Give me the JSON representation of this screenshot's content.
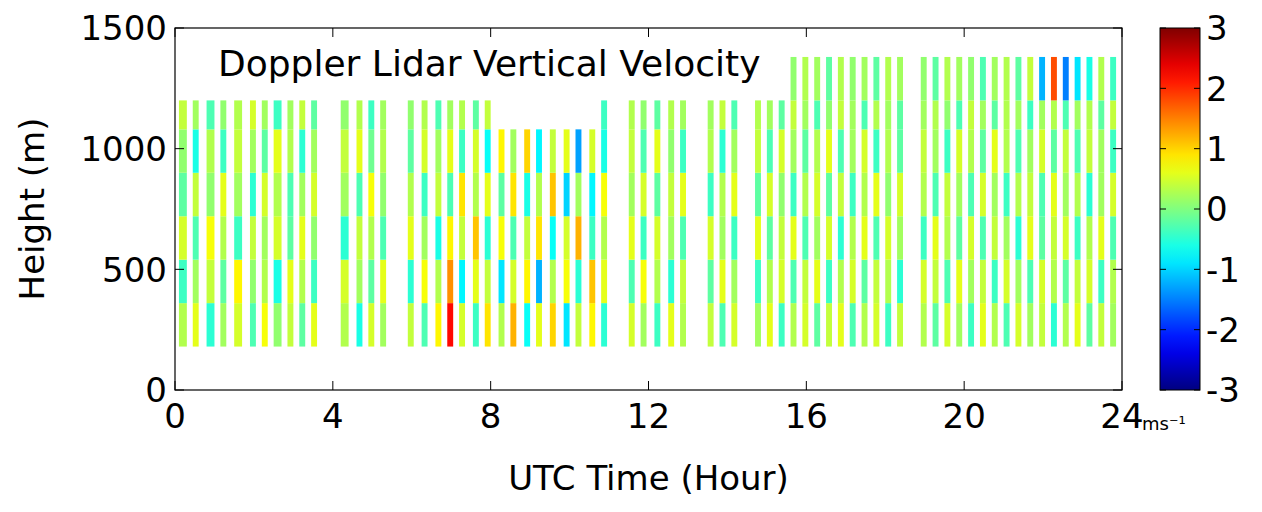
{
  "chart_data": {
    "type": "heatmap",
    "title": "Doppler Lidar Vertical Velocity",
    "x_label": "UTC Time (Hour)",
    "y_label": "Height (m)",
    "xlim": [
      0,
      24
    ],
    "xticks": [
      0,
      4,
      8,
      12,
      16,
      20,
      24
    ],
    "ylim": [
      0,
      1500
    ],
    "yticks": [
      0,
      500,
      1000,
      1500
    ],
    "height_edges": [
      180,
      360,
      540,
      720,
      900,
      1080,
      1200,
      1380
    ],
    "columns": [
      {
        "start": 0.1,
        "end": 0.3,
        "values": [
          0.3,
          -0.4,
          0.5,
          -0.2,
          0.1,
          0.4,
          null
        ]
      },
      {
        "start": 0.45,
        "end": 0.6,
        "values": [
          0.6,
          0.2,
          -0.3,
          0.4,
          -0.6,
          0.2,
          null
        ]
      },
      {
        "start": 0.8,
        "end": 1.0,
        "values": [
          -0.5,
          0.4,
          0.7,
          0.1,
          0.3,
          -0.3,
          null
        ]
      },
      {
        "start": 1.15,
        "end": 1.3,
        "values": [
          0.2,
          -0.2,
          0.3,
          0.6,
          -0.4,
          0.1,
          null
        ]
      },
      {
        "start": 1.5,
        "end": 1.7,
        "values": [
          0.5,
          0.8,
          -0.4,
          0.2,
          0.4,
          0.3,
          null
        ]
      },
      {
        "start": 1.9,
        "end": 2.05,
        "values": [
          -0.3,
          0.1,
          0.4,
          -0.5,
          0.2,
          0.5,
          null
        ]
      },
      {
        "start": 2.2,
        "end": 2.35,
        "values": [
          0.7,
          0.3,
          0.2,
          0.5,
          -0.2,
          0.2,
          null
        ]
      },
      {
        "start": 2.5,
        "end": 2.7,
        "values": [
          0.1,
          -0.6,
          0.5,
          0.3,
          0.6,
          -0.4,
          null
        ]
      },
      {
        "start": 2.85,
        "end": 3.0,
        "values": [
          0.4,
          0.6,
          -0.2,
          -0.3,
          0.3,
          0.2,
          null
        ]
      },
      {
        "start": 3.15,
        "end": 3.3,
        "values": [
          -0.2,
          0.3,
          0.6,
          0.2,
          -0.5,
          0.4,
          null
        ]
      },
      {
        "start": 3.45,
        "end": 3.6,
        "values": [
          0.6,
          -0.4,
          0.1,
          0.5,
          0.2,
          -0.2,
          null
        ]
      },
      {
        "start": 4.2,
        "end": 4.4,
        "values": [
          0.3,
          0.5,
          -0.5,
          0.2,
          0.4,
          0.1,
          null
        ]
      },
      {
        "start": 4.6,
        "end": 4.75,
        "values": [
          -0.6,
          0.2,
          0.4,
          -0.3,
          0.6,
          0.3,
          null
        ]
      },
      {
        "start": 4.9,
        "end": 5.05,
        "values": [
          0.5,
          -0.2,
          0.3,
          0.7,
          -0.1,
          -0.4,
          null
        ]
      },
      {
        "start": 5.2,
        "end": 5.35,
        "values": [
          0.2,
          0.6,
          -0.3,
          0.1,
          0.3,
          0.2,
          null
        ]
      },
      {
        "start": 5.9,
        "end": 6.05,
        "values": [
          0.4,
          -0.5,
          0.6,
          0.3,
          -0.2,
          0.1,
          null
        ]
      },
      {
        "start": 6.25,
        "end": 6.4,
        "values": [
          -0.3,
          0.7,
          0.2,
          -0.4,
          0.5,
          0.3,
          null
        ]
      },
      {
        "start": 6.6,
        "end": 6.75,
        "values": [
          0.8,
          0.3,
          -0.6,
          0.4,
          0.2,
          -0.3,
          null
        ]
      },
      {
        "start": 6.9,
        "end": 7.05,
        "values": [
          2.2,
          1.4,
          0.8,
          -0.3,
          0.6,
          0.2,
          null
        ]
      },
      {
        "start": 7.2,
        "end": 7.35,
        "values": [
          0.5,
          -0.8,
          0.4,
          0.9,
          -0.4,
          0.3,
          null
        ]
      },
      {
        "start": 7.55,
        "end": 7.7,
        "values": [
          -0.4,
          0.6,
          1.1,
          0.3,
          0.5,
          -0.2,
          null
        ]
      },
      {
        "start": 7.85,
        "end": 8.0,
        "values": [
          0.9,
          0.4,
          -0.5,
          0.6,
          -0.7,
          0.4,
          null
        ]
      },
      {
        "start": 8.2,
        "end": 8.35,
        "values": [
          0.3,
          -0.9,
          0.7,
          -0.2,
          0.8,
          null,
          null
        ]
      },
      {
        "start": 8.5,
        "end": 8.65,
        "values": [
          1.2,
          0.5,
          -0.3,
          0.9,
          0.2,
          null,
          null
        ]
      },
      {
        "start": 8.85,
        "end": 9.0,
        "values": [
          -0.7,
          0.8,
          0.4,
          -0.6,
          1.0,
          null,
          null
        ]
      },
      {
        "start": 9.15,
        "end": 9.3,
        "values": [
          0.6,
          -1.2,
          0.9,
          0.3,
          -0.8,
          null,
          null
        ]
      },
      {
        "start": 9.5,
        "end": 9.65,
        "values": [
          1.0,
          0.3,
          -0.7,
          1.1,
          0.4,
          null,
          null
        ]
      },
      {
        "start": 9.85,
        "end": 10.0,
        "values": [
          -0.9,
          0.7,
          0.5,
          -1.0,
          0.6,
          null,
          null
        ]
      },
      {
        "start": 10.15,
        "end": 10.3,
        "values": [
          0.4,
          -0.5,
          1.2,
          0.2,
          -1.3,
          null,
          null
        ]
      },
      {
        "start": 10.5,
        "end": 10.65,
        "values": [
          0.8,
          1.1,
          -0.4,
          -0.8,
          0.5,
          null,
          null
        ]
      },
      {
        "start": 10.8,
        "end": 10.95,
        "values": [
          -0.5,
          0.6,
          0.3,
          0.7,
          -0.6,
          -0.4,
          null
        ]
      },
      {
        "start": 11.5,
        "end": 11.65,
        "values": [
          0.5,
          -0.3,
          0.6,
          0.2,
          0.4,
          0.3,
          null
        ]
      },
      {
        "start": 11.8,
        "end": 11.95,
        "values": [
          0.2,
          0.7,
          -0.4,
          0.5,
          -0.3,
          0.1,
          null
        ]
      },
      {
        "start": 12.15,
        "end": 12.3,
        "values": [
          -0.4,
          0.3,
          0.5,
          -0.2,
          0.6,
          -0.2,
          null
        ]
      },
      {
        "start": 12.5,
        "end": 12.65,
        "values": [
          0.6,
          -0.5,
          0.2,
          0.4,
          0.1,
          0.3,
          null
        ]
      },
      {
        "start": 12.8,
        "end": 12.95,
        "values": [
          0.3,
          0.4,
          -0.3,
          0.6,
          -0.4,
          0.2,
          null
        ]
      },
      {
        "start": 13.5,
        "end": 13.65,
        "values": [
          0.4,
          -0.2,
          0.5,
          -0.4,
          0.3,
          0.2,
          null
        ]
      },
      {
        "start": 13.8,
        "end": 13.95,
        "values": [
          -0.3,
          0.6,
          0.2,
          0.3,
          -0.5,
          0.4,
          null
        ]
      },
      {
        "start": 14.1,
        "end": 14.25,
        "values": [
          0.5,
          0.2,
          -0.4,
          0.6,
          0.2,
          -0.3,
          null
        ]
      },
      {
        "start": 14.7,
        "end": 14.85,
        "values": [
          0.2,
          -0.4,
          0.6,
          -0.2,
          0.4,
          0.3,
          null
        ]
      },
      {
        "start": 15.0,
        "end": 15.15,
        "values": [
          0.6,
          0.3,
          -0.2,
          0.5,
          -0.3,
          0.2,
          null
        ]
      },
      {
        "start": 15.3,
        "end": 15.45,
        "values": [
          -0.4,
          0.5,
          0.4,
          0.1,
          0.5,
          -0.2,
          null
        ]
      },
      {
        "start": 15.6,
        "end": 15.75,
        "values": [
          0.3,
          -0.3,
          0.6,
          -0.4,
          0.2,
          0.4,
          0.1
        ]
      },
      {
        "start": 15.9,
        "end": 16.05,
        "values": [
          0.5,
          0.4,
          -0.3,
          0.3,
          -0.2,
          0.2,
          0.3
        ]
      },
      {
        "start": 16.2,
        "end": 16.35,
        "values": [
          -0.2,
          0.6,
          0.2,
          0.5,
          0.3,
          -0.3,
          0.2
        ]
      },
      {
        "start": 16.5,
        "end": 16.65,
        "values": [
          0.4,
          -0.4,
          0.5,
          -0.2,
          0.6,
          0.1,
          -0.2
        ]
      },
      {
        "start": 16.8,
        "end": 16.95,
        "values": [
          0.6,
          0.3,
          -0.5,
          0.4,
          -0.3,
          0.4,
          0.3
        ]
      },
      {
        "start": 17.1,
        "end": 17.25,
        "values": [
          -0.3,
          0.5,
          0.3,
          -0.4,
          0.2,
          0.2,
          0.1
        ]
      },
      {
        "start": 17.4,
        "end": 17.55,
        "values": [
          0.3,
          -0.2,
          0.6,
          0.3,
          0.5,
          -0.3,
          0.2
        ]
      },
      {
        "start": 17.7,
        "end": 17.85,
        "values": [
          0.5,
          0.4,
          -0.3,
          0.6,
          -0.4,
          0.3,
          -0.2
        ]
      },
      {
        "start": 18.0,
        "end": 18.15,
        "values": [
          -0.4,
          0.3,
          0.5,
          0.1,
          0.3,
          0.2,
          0.3
        ]
      },
      {
        "start": 18.3,
        "end": 18.45,
        "values": [
          0.4,
          -0.5,
          0.2,
          0.5,
          -0.2,
          -0.2,
          0.2
        ]
      },
      {
        "start": 18.9,
        "end": 19.05,
        "values": [
          0.3,
          0.5,
          -0.4,
          0.3,
          0.4,
          0.2,
          0.1
        ]
      },
      {
        "start": 19.2,
        "end": 19.35,
        "values": [
          -0.2,
          0.4,
          0.6,
          -0.3,
          0.2,
          0.3,
          -0.2
        ]
      },
      {
        "start": 19.5,
        "end": 19.65,
        "values": [
          0.5,
          -0.3,
          0.3,
          0.4,
          -0.4,
          0.1,
          0.3
        ]
      },
      {
        "start": 19.8,
        "end": 19.95,
        "values": [
          0.2,
          0.6,
          -0.2,
          0.2,
          0.5,
          -0.3,
          0.2
        ]
      },
      {
        "start": 20.1,
        "end": 20.25,
        "values": [
          -0.4,
          0.2,
          0.5,
          -0.3,
          0.3,
          0.4,
          0.1
        ]
      },
      {
        "start": 20.4,
        "end": 20.55,
        "values": [
          0.6,
          0.4,
          -0.3,
          0.5,
          -0.2,
          0.2,
          -0.3
        ]
      },
      {
        "start": 20.7,
        "end": 20.85,
        "values": [
          0.3,
          -0.4,
          0.4,
          0.2,
          0.6,
          -0.2,
          0.2
        ]
      },
      {
        "start": 21.0,
        "end": 21.15,
        "values": [
          -0.3,
          0.5,
          0.2,
          -0.4,
          0.3,
          0.3,
          0.3
        ]
      },
      {
        "start": 21.3,
        "end": 21.45,
        "values": [
          0.5,
          0.2,
          -0.5,
          0.3,
          -0.3,
          0.2,
          -0.2
        ]
      },
      {
        "start": 21.6,
        "end": 21.75,
        "values": [
          0.2,
          -0.3,
          0.6,
          0.4,
          0.2,
          -0.4,
          0.4
        ]
      },
      {
        "start": 21.9,
        "end": 22.05,
        "values": [
          0.4,
          0.5,
          -0.2,
          -0.3,
          0.5,
          0.2,
          -1.2
        ]
      },
      {
        "start": 22.2,
        "end": 22.35,
        "values": [
          -0.5,
          0.3,
          0.4,
          0.6,
          -0.2,
          0.3,
          1.8
        ]
      },
      {
        "start": 22.5,
        "end": 22.65,
        "values": [
          0.3,
          -0.2,
          0.5,
          0.2,
          0.4,
          -0.3,
          -1.5
        ]
      },
      {
        "start": 22.8,
        "end": 22.95,
        "values": [
          0.6,
          0.4,
          -0.4,
          0.3,
          -0.3,
          0.2,
          -0.9
        ]
      },
      {
        "start": 23.1,
        "end": 23.25,
        "values": [
          -0.2,
          0.5,
          0.3,
          -0.5,
          0.4,
          0.3,
          -0.6
        ]
      },
      {
        "start": 23.4,
        "end": 23.55,
        "values": [
          0.4,
          -0.4,
          0.6,
          0.2,
          0.2,
          -0.2,
          0.3
        ]
      },
      {
        "start": 23.7,
        "end": 23.85,
        "values": [
          0.2,
          0.3,
          -0.3,
          0.5,
          -0.4,
          0.4,
          -0.4
        ]
      }
    ],
    "colorbar": {
      "range": [
        -3,
        3
      ],
      "ticks": [
        -3,
        -2,
        -1,
        0,
        1,
        2,
        3
      ],
      "label": "ms⁻¹"
    }
  }
}
